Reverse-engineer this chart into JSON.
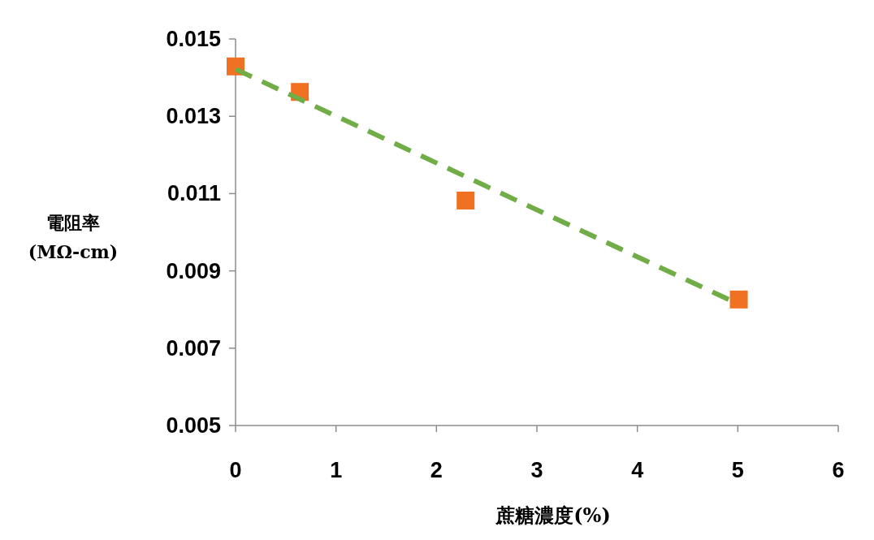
{
  "chart_data": {
    "type": "scatter",
    "xlabel": "蔗糖濃度(%)",
    "ylabel": "電阻率\n(MΩ-cm)",
    "xlim": [
      0,
      6
    ],
    "xticks": [
      0,
      1,
      2,
      3,
      4,
      5,
      6
    ],
    "ylim": [
      0.005,
      0.015
    ],
    "yticks": [
      0.005,
      0.007,
      0.009,
      0.011,
      0.013,
      0.015
    ],
    "grid": false,
    "series": [
      {
        "color": "#f07122",
        "marker": "square",
        "x": [
          0,
          0.64,
          2.29,
          5.01
        ],
        "values": [
          0.01429,
          0.01363,
          0.01082,
          0.00826
        ]
      },
      {
        "type": "line",
        "color": "#70ad47",
        "line_style": "dashed",
        "marker": "none",
        "x": [
          0,
          5
        ],
        "values": [
          0.01422,
          0.00815
        ]
      }
    ]
  }
}
